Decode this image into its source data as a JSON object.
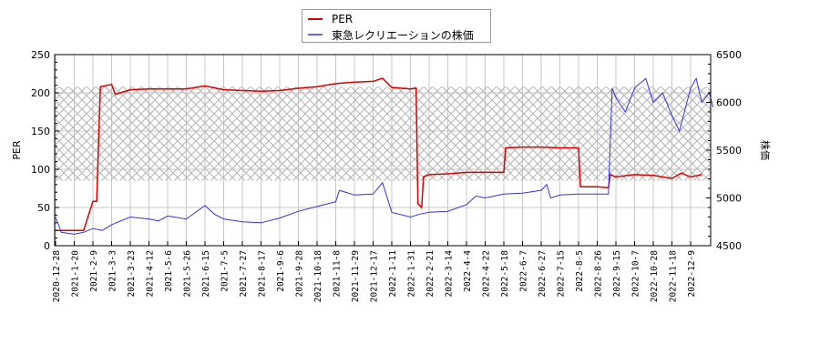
{
  "legend": {
    "items": [
      {
        "label": "PER",
        "color": "#dd0000"
      },
      {
        "label": "東急レクリエーションの株価",
        "color": "#3333dd"
      }
    ]
  },
  "axes": {
    "left_title": "PER",
    "right_title": "株価",
    "left_ticks": [
      "0",
      "50",
      "100",
      "150",
      "200",
      "250"
    ],
    "right_ticks": [
      "4500",
      "5000",
      "5500",
      "6000",
      "6500"
    ]
  },
  "chart_data": {
    "type": "line",
    "title": "",
    "xlabel": "",
    "ylabel": "PER",
    "y2label": "株価",
    "ylim": [
      0,
      250
    ],
    "y2lim": [
      4500,
      6500
    ],
    "grid": true,
    "legend_position": "top-center",
    "shaded_band": {
      "ymin": 85,
      "ymax": 208,
      "pattern": "crosshatch"
    },
    "x_tick_labels": [
      "2020-12-28",
      "2021-1-20",
      "2021-2-9",
      "2021-3-3",
      "2021-3-23",
      "2021-4-12",
      "2021-5-6",
      "2021-5-26",
      "2021-6-15",
      "2021-7-5",
      "2021-7-27",
      "2021-8-17",
      "2021-9-6",
      "2021-9-28",
      "2021-10-18",
      "2021-11-8",
      "2021-11-29",
      "2021-12-17",
      "2022-1-11",
      "2022-1-31",
      "2022-2-21",
      "2022-3-14",
      "2022-4-4",
      "2022-4-22",
      "2022-5-18",
      "2022-6-7",
      "2022-6-27",
      "2022-7-15",
      "2022-8-5",
      "2022-8-26",
      "2022-9-15",
      "2022-10-7",
      "2022-10-28",
      "2022-11-18",
      "2022-12-9"
    ],
    "series": [
      {
        "name": "PER",
        "axis": "left",
        "color": "#dd0000",
        "points": [
          [
            0,
            20
          ],
          [
            1.5,
            20
          ],
          [
            2,
            58
          ],
          [
            2.2,
            58
          ],
          [
            2.4,
            208
          ],
          [
            3,
            211
          ],
          [
            3.2,
            198
          ],
          [
            4,
            204
          ],
          [
            5,
            205
          ],
          [
            6,
            205
          ],
          [
            7,
            205
          ],
          [
            8,
            209
          ],
          [
            9,
            204
          ],
          [
            10,
            203
          ],
          [
            11,
            202
          ],
          [
            12,
            203
          ],
          [
            13,
            206
          ],
          [
            14,
            208
          ],
          [
            15,
            212
          ],
          [
            16,
            214
          ],
          [
            17,
            215
          ],
          [
            17.5,
            219
          ],
          [
            18,
            207
          ],
          [
            19,
            205
          ],
          [
            19.3,
            206
          ],
          [
            19.4,
            55
          ],
          [
            19.6,
            50
          ],
          [
            19.7,
            90
          ],
          [
            20,
            93
          ],
          [
            21,
            94
          ],
          [
            22,
            96
          ],
          [
            23,
            96
          ],
          [
            24,
            96
          ],
          [
            24.1,
            128
          ],
          [
            25,
            129
          ],
          [
            26,
            129
          ],
          [
            27,
            128
          ],
          [
            28,
            128
          ],
          [
            28.1,
            77
          ],
          [
            29,
            77
          ],
          [
            29.6,
            76
          ],
          [
            29.7,
            93
          ],
          [
            30,
            90
          ],
          [
            31,
            93
          ],
          [
            32,
            92
          ],
          [
            33,
            88
          ],
          [
            33.5,
            95
          ],
          [
            34,
            90
          ],
          [
            34.6,
            93
          ]
        ]
      },
      {
        "name": "東急レクリエーションの株価",
        "axis": "right",
        "color": "#3333dd",
        "points": [
          [
            0,
            4800
          ],
          [
            0.3,
            4640
          ],
          [
            1,
            4620
          ],
          [
            1.5,
            4640
          ],
          [
            2,
            4680
          ],
          [
            2.5,
            4660
          ],
          [
            3,
            4720
          ],
          [
            4,
            4800
          ],
          [
            5,
            4780
          ],
          [
            5.5,
            4760
          ],
          [
            6,
            4810
          ],
          [
            7,
            4780
          ],
          [
            8,
            4920
          ],
          [
            8.5,
            4830
          ],
          [
            9,
            4780
          ],
          [
            10,
            4750
          ],
          [
            11,
            4740
          ],
          [
            12,
            4790
          ],
          [
            13,
            4860
          ],
          [
            14,
            4910
          ],
          [
            15,
            4960
          ],
          [
            15.2,
            5080
          ],
          [
            16,
            5030
          ],
          [
            17,
            5040
          ],
          [
            17.5,
            5160
          ],
          [
            18,
            4850
          ],
          [
            19,
            4800
          ],
          [
            19.5,
            4830
          ],
          [
            20,
            4850
          ],
          [
            21,
            4860
          ],
          [
            22,
            4930
          ],
          [
            22.5,
            5020
          ],
          [
            23,
            5000
          ],
          [
            24,
            5040
          ],
          [
            25,
            5050
          ],
          [
            26,
            5080
          ],
          [
            26.3,
            5140
          ],
          [
            26.5,
            5000
          ],
          [
            27,
            5030
          ],
          [
            28,
            5040
          ],
          [
            29,
            5040
          ],
          [
            29.6,
            5040
          ],
          [
            29.8,
            6150
          ],
          [
            30,
            6050
          ],
          [
            30.5,
            5900
          ],
          [
            31,
            6150
          ],
          [
            31.6,
            6250
          ],
          [
            32,
            6000
          ],
          [
            32.5,
            6100
          ],
          [
            33,
            5860
          ],
          [
            33.4,
            5700
          ],
          [
            34,
            6150
          ],
          [
            34.3,
            6250
          ],
          [
            34.6,
            6000
          ],
          [
            35,
            6100
          ],
          [
            35.2,
            5950
          ]
        ]
      }
    ]
  }
}
